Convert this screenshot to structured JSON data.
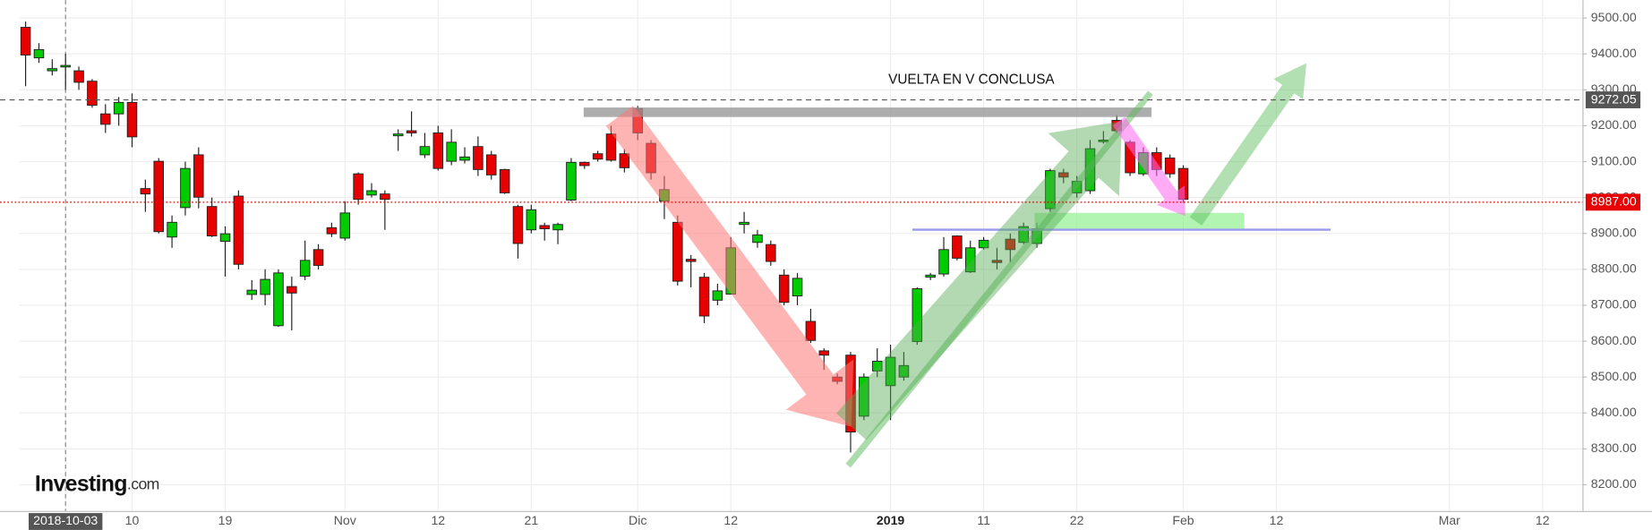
{
  "chart_data": {
    "type": "candlestick",
    "brand": "Investing",
    "brand_suffix": ".com",
    "annotations": [
      "VUELTA EN V CONCLUSA"
    ],
    "up_color": "#00cc00",
    "down_color": "#e60000",
    "open": [
      9474,
      9389,
      9353,
      9365,
      9353,
      9324,
      9233,
      9233,
      9265,
      9025,
      9101,
      8890,
      8972,
      9119,
      8975,
      8878,
      9004,
      8730,
      8730,
      8643,
      8752,
      8781,
      8855,
      8916,
      8887,
      9066,
      9007,
      9010,
      9172,
      9186,
      9119,
      9180,
      9101,
      9104,
      9142,
      9119,
      9078,
      8975,
      8910,
      8922,
      8910,
      8993,
      9098,
      9122,
      9177,
      9122,
      9248,
      9151,
      8990,
      8931,
      8828,
      8778,
      8714,
      8731,
      8925,
      8875,
      8869,
      8784,
      8726,
      8655,
      8573,
      8500,
      8561,
      8391,
      8517,
      8476,
      8500,
      8599,
      8778,
      8787,
      8893,
      8793,
      8860,
      8825,
      8884,
      8875,
      8872,
      8969,
      9069,
      9013,
      9019,
      9157,
      9215,
      9154,
      9066,
      9125,
      9110,
      9081
    ],
    "high": [
      9490,
      9430,
      9385,
      9400,
      9365,
      9330,
      9260,
      9280,
      9290,
      9050,
      9110,
      8950,
      9100,
      9140,
      9000,
      8920,
      9020,
      8770,
      8800,
      8800,
      8780,
      8880,
      8870,
      8930,
      8990,
      9070,
      9040,
      9020,
      9190,
      9240,
      9180,
      9200,
      9190,
      9140,
      9170,
      9130,
      9080,
      8980,
      8980,
      8930,
      8930,
      9110,
      9100,
      9130,
      9200,
      9135,
      9255,
      9160,
      9060,
      8950,
      8840,
      8790,
      8760,
      8890,
      8960,
      8910,
      8880,
      8800,
      8790,
      8690,
      8580,
      8510,
      8570,
      8510,
      8580,
      8590,
      8570,
      8750,
      8790,
      8890,
      8895,
      8880,
      8890,
      8860,
      8900,
      8930,
      8930,
      9080,
      9080,
      9060,
      9160,
      9185,
      9230,
      9160,
      9140,
      9140,
      9120,
      9090
    ],
    "low": [
      9310,
      9375,
      9340,
      9300,
      9300,
      9250,
      9180,
      9200,
      9140,
      8960,
      8900,
      8860,
      8950,
      8970,
      8890,
      8780,
      8800,
      8715,
      8700,
      8640,
      8630,
      8770,
      8800,
      8890,
      8880,
      8980,
      9000,
      8910,
      9130,
      9170,
      9110,
      9075,
      9090,
      9095,
      9060,
      9050,
      9010,
      8830,
      8900,
      8880,
      8870,
      8990,
      9080,
      9100,
      9100,
      9070,
      9160,
      9050,
      8940,
      8755,
      8750,
      8650,
      8700,
      8730,
      8900,
      8860,
      8810,
      8700,
      8700,
      8595,
      8520,
      8480,
      8290,
      8380,
      8500,
      8380,
      8490,
      8590,
      8770,
      8780,
      8825,
      8790,
      8855,
      8800,
      8820,
      8870,
      8860,
      8960,
      9040,
      9000,
      9010,
      9150,
      9180,
      9060,
      9060,
      9060,
      9055,
      8985
    ],
    "close": [
      9397,
      9412,
      9359,
      9368,
      9321,
      9257,
      9204,
      9265,
      9169,
      9010,
      8905,
      8931,
      9081,
      9001,
      8893,
      8899,
      8814,
      8742,
      8772,
      8790,
      8734,
      8825,
      8811,
      8899,
      8957,
      8995,
      9019,
      8995,
      9177,
      9180,
      9142,
      9081,
      9154,
      9113,
      9078,
      9063,
      9013,
      8872,
      8966,
      8913,
      8925,
      9098,
      9089,
      9107,
      9104,
      9083,
      9180,
      9069,
      9022,
      8767,
      8822,
      8670,
      8740,
      8860,
      8931,
      8896,
      8822,
      8708,
      8775,
      8602,
      8561,
      8488,
      8347,
      8500,
      8544,
      8555,
      8532,
      8746,
      8784,
      8855,
      8831,
      8860,
      8881,
      8819,
      8855,
      8919,
      8913,
      9075,
      9057,
      9045,
      9136,
      9160,
      9186,
      9069,
      9125,
      9078,
      9066,
      8995
    ],
    "xlim": [
      -0.5,
      117
    ],
    "xticks": [
      {
        "value": 3,
        "label": "2018-10-03"
      },
      {
        "value": 8,
        "label": "10"
      },
      {
        "value": 15,
        "label": "19"
      },
      {
        "value": 24,
        "label": "Nov"
      },
      {
        "value": 31,
        "label": "12"
      },
      {
        "value": 38,
        "label": "21"
      },
      {
        "value": 46,
        "label": "Dic"
      },
      {
        "value": 53,
        "label": "12"
      },
      {
        "value": 65,
        "label": "2019"
      },
      {
        "value": 72,
        "label": "11"
      },
      {
        "value": 79,
        "label": "22"
      },
      {
        "value": 87,
        "label": "Feb"
      },
      {
        "value": 94,
        "label": "12"
      },
      {
        "value": 107,
        "label": "Mar"
      },
      {
        "value": 114,
        "label": "12"
      }
    ],
    "crosshair": 3,
    "ylim": [
      8127,
      9550
    ],
    "yticks": [
      {
        "value": 8200,
        "label": "8200.00"
      },
      {
        "value": 8300,
        "label": "8300.00"
      },
      {
        "value": 8400,
        "label": "8400.00"
      },
      {
        "value": 8500,
        "label": "8500.00"
      },
      {
        "value": 8600,
        "label": "8600.00"
      },
      {
        "value": 8700,
        "label": "8700.00"
      },
      {
        "value": 8800,
        "label": "8800.00"
      },
      {
        "value": 8900,
        "label": "8900.00"
      },
      {
        "value": 9000,
        "label": "9000.00"
      },
      {
        "value": 9100,
        "label": "9100.00"
      },
      {
        "value": 9200,
        "label": "9200.00"
      },
      {
        "value": 9300,
        "label": "9300.00"
      },
      {
        "value": 9400,
        "label": "9400.00"
      },
      {
        "value": 9500,
        "label": "9500.00"
      }
    ],
    "grid": true,
    "hlines": [
      {
        "value": 9272.05,
        "label": "9272.05",
        "color": "#555555",
        "style": "dashed"
      },
      {
        "value": 8987,
        "label": "8987.00",
        "color": "#e60000",
        "style": "dotted"
      }
    ]
  }
}
